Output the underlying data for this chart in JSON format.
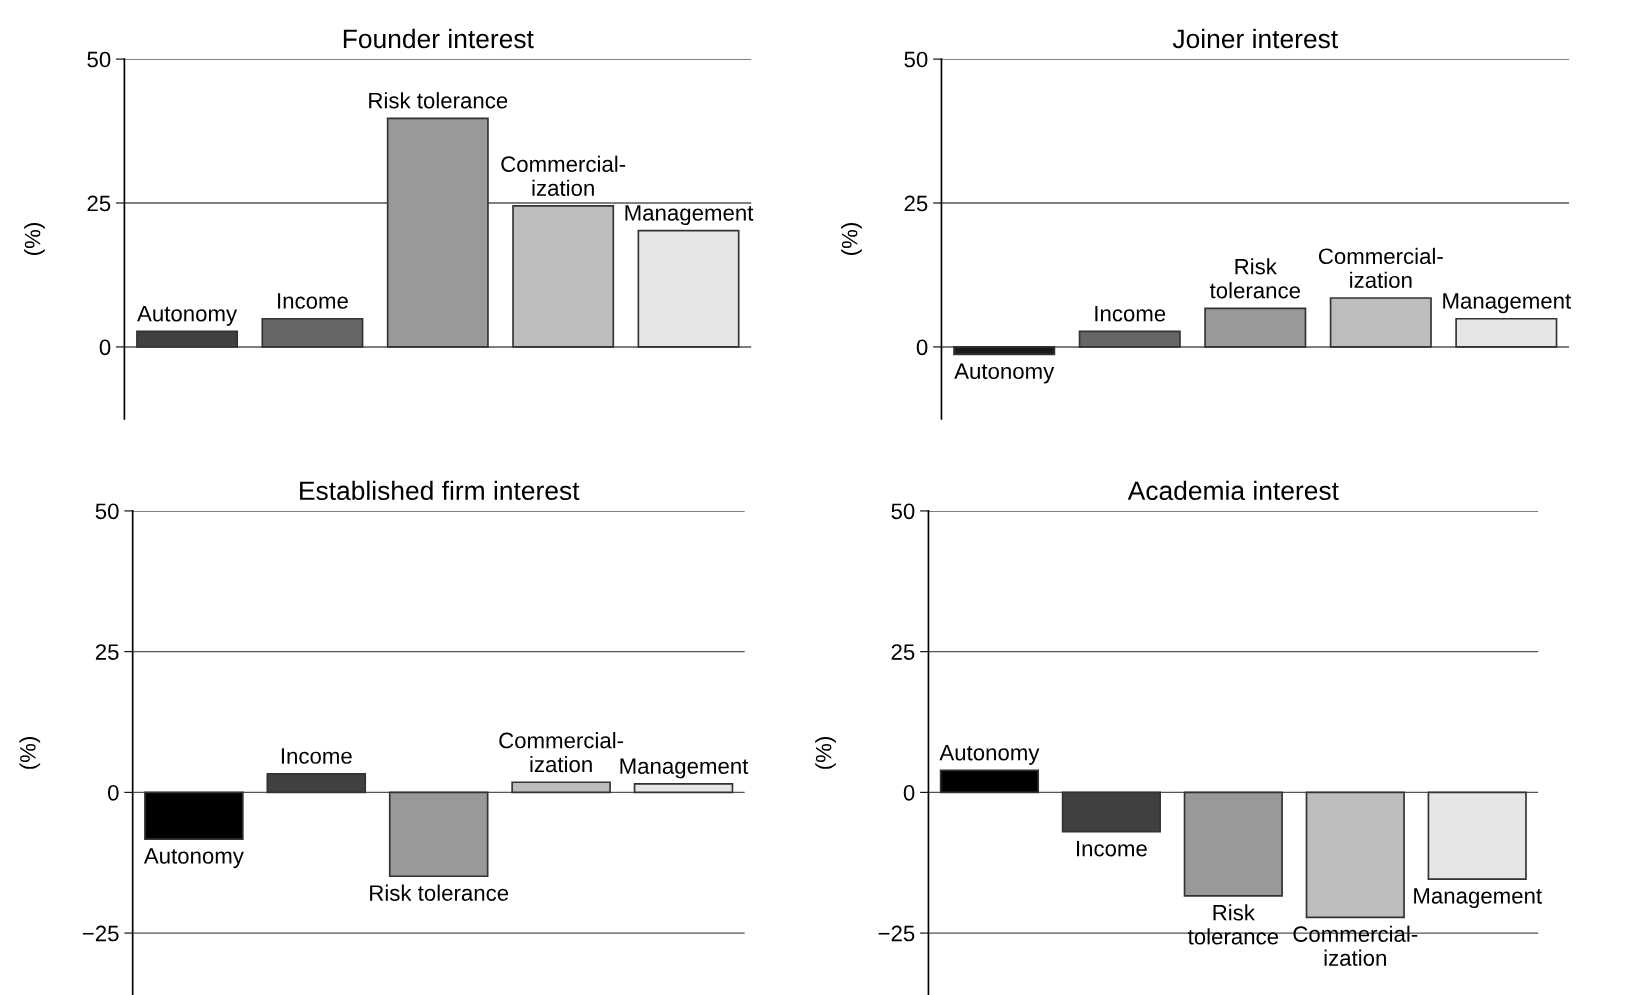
{
  "chart_data": [
    {
      "type": "bar",
      "title": "Founder interest",
      "ylabel": "(%)",
      "categories": [
        "Autonomy",
        "Income",
        "Risk tolerance",
        "Commercial-\nization",
        "Management"
      ],
      "values": [
        2.7,
        4.9,
        39.7,
        24.5,
        20.2
      ],
      "colors": [
        "#404040",
        "#666666",
        "#999999",
        "#bdbdbd",
        "#e6e6e6"
      ],
      "ylim": [
        -12.5,
        50
      ],
      "yticks": [
        0,
        25,
        50
      ],
      "grid": "y",
      "tick_labels": "y"
    },
    {
      "type": "bar",
      "title": "Established firm interest",
      "ylabel": "(%)",
      "categories": [
        "Autonomy",
        "Income",
        "Risk tolerance",
        "Commercial-\nization",
        "Management"
      ],
      "values": [
        -8.3,
        3.3,
        -14.9,
        1.8,
        1.5
      ],
      "colors": [
        "#000000",
        "#404040",
        "#999999",
        "#bdbdbd",
        "#e6e6e6"
      ],
      "ylim": [
        -36,
        50
      ],
      "yticks": [
        {
          "value": -25,
          "label": "−25"
        },
        0,
        25,
        50
      ],
      "grid": "y",
      "tick_labels": "y"
    },
    {
      "type": "bar",
      "title": "Joiner interest",
      "ylabel": "(%)",
      "categories": [
        "Autonomy",
        "Income",
        "Risk\ntolerance",
        "Commercial-\nization",
        "Management"
      ],
      "values": [
        -1.3,
        2.7,
        6.7,
        8.5,
        4.9
      ],
      "colors": [
        "#1a1a1a",
        "#666666",
        "#999999",
        "#bdbdbd",
        "#e6e6e6"
      ],
      "ylim": [
        -12.5,
        50
      ],
      "yticks": [
        0,
        25,
        50
      ],
      "grid": "y",
      "tick_labels": "y"
    },
    {
      "type": "bar",
      "title": "Academia interest",
      "ylabel": "(%)",
      "categories": [
        "Autonomy",
        "Income",
        "Risk\ntolerance",
        "Commercial-\nization",
        "Management"
      ],
      "values": [
        3.9,
        -7.0,
        -18.4,
        -22.2,
        -15.4
      ],
      "colors": [
        "#000000",
        "#404040",
        "#999999",
        "#bdbdbd",
        "#e6e6e6"
      ],
      "ylim": [
        -36,
        50
      ],
      "yticks": [
        {
          "value": -25,
          "label": "−25"
        },
        0,
        25,
        50
      ],
      "grid": "y",
      "tick_labels": "y"
    }
  ]
}
